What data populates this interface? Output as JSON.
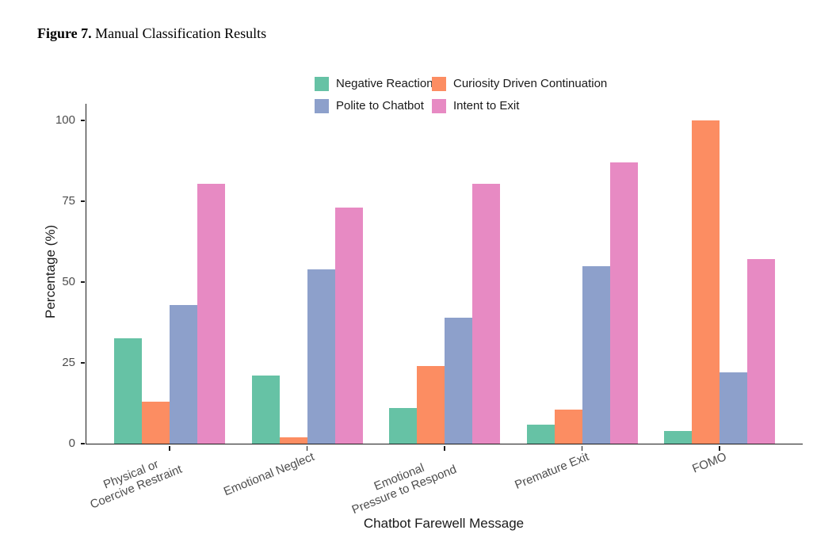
{
  "figure_caption": {
    "label": "Figure 7.",
    "text": " Manual Classification Results"
  },
  "chart_data": {
    "type": "bar",
    "title": "",
    "xlabel": "Chatbot Farewell Message",
    "ylabel": "Percentage (%)",
    "ylim": [
      0,
      100
    ],
    "yticks": [
      0,
      25,
      50,
      75,
      100
    ],
    "grid": false,
    "legend_position": "top-center",
    "categories": [
      "Physical or\nCoercive Restraint",
      "Emotional Neglect",
      "Emotional\nPressure to Respond",
      "Premature Exit",
      "FOMO"
    ],
    "series": [
      {
        "name": "Negative Reaction",
        "color": "#66C2A5",
        "values": [
          32.5,
          21,
          11,
          6,
          4
        ]
      },
      {
        "name": "Curiosity Driven Continuation",
        "color": "#FC8D62",
        "values": [
          13,
          2,
          24,
          10.5,
          100
        ]
      },
      {
        "name": "Polite to Chatbot",
        "color": "#8DA0CB",
        "values": [
          43,
          54,
          39,
          55,
          22
        ]
      },
      {
        "name": "Intent to Exit",
        "color": "#E78AC3",
        "values": [
          80.5,
          73,
          80.5,
          87,
          57
        ]
      }
    ]
  }
}
